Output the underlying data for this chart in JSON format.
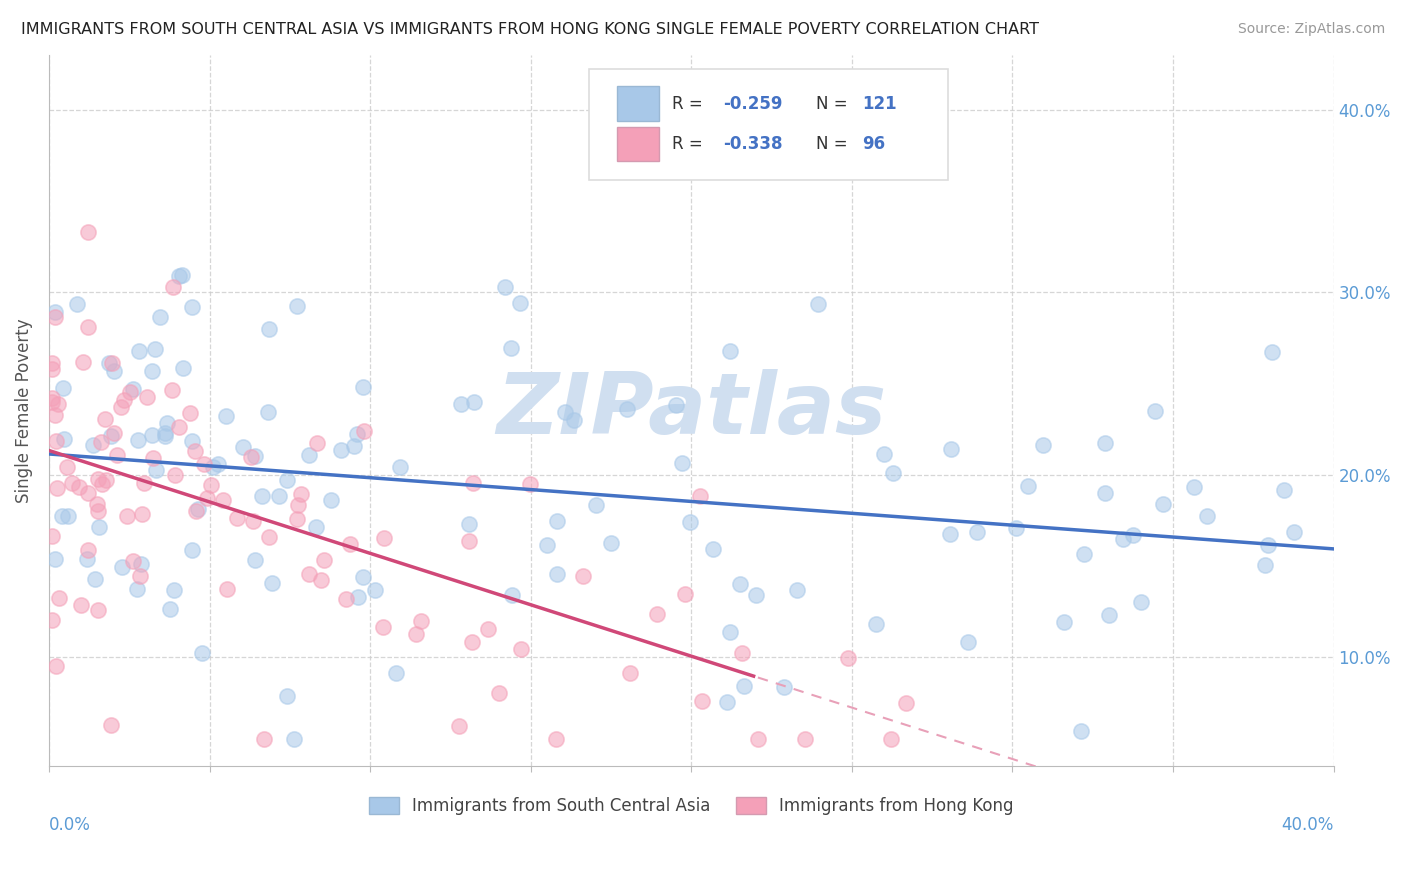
{
  "title": "IMMIGRANTS FROM SOUTH CENTRAL ASIA VS IMMIGRANTS FROM HONG KONG SINGLE FEMALE POVERTY CORRELATION CHART",
  "source": "Source: ZipAtlas.com",
  "ylabel": "Single Female Poverty",
  "legend1_label": "Immigrants from South Central Asia",
  "legend2_label": "Immigrants from Hong Kong",
  "blue_color": "#a8c8e8",
  "blue_edge_color": "#a8c8e8",
  "blue_line_color": "#4472c4",
  "pink_color": "#f4a0b8",
  "pink_edge_color": "#f4a0b8",
  "pink_line_color": "#d04878",
  "pink_dash_color": "#e8a0b8",
  "watermark": "ZIPatlas",
  "watermark_color": "#d0dff0",
  "background": "#ffffff",
  "xlim": [
    0.0,
    0.4
  ],
  "ylim": [
    0.04,
    0.43
  ],
  "ytick_labels": [
    "10.0%",
    "20.0%",
    "30.0%",
    "40.0%"
  ],
  "ytick_vals": [
    0.1,
    0.2,
    0.3,
    0.4
  ],
  "blue_r": "-0.259",
  "blue_n": "121",
  "pink_r": "-0.338",
  "pink_n": "96"
}
